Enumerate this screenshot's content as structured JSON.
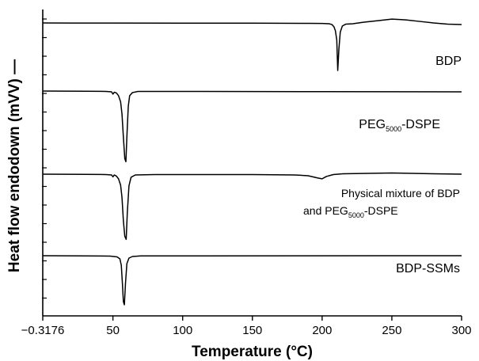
{
  "chart_data": {
    "type": "line",
    "title": "",
    "xlabel": "Temperature (°C)",
    "ylabel": "Heat flow endodown (mVV) —",
    "xlim": [
      -0.3176,
      300
    ],
    "x_ticks": [
      {
        "value": -0.3176,
        "label": "−0.3176"
      },
      {
        "value": 50,
        "label": "50"
      },
      {
        "value": 100,
        "label": "100"
      },
      {
        "value": 150,
        "label": "150"
      },
      {
        "value": 200,
        "label": "200"
      },
      {
        "value": 250,
        "label": "250"
      },
      {
        "value": 300,
        "label": "300"
      }
    ],
    "grid": false,
    "legend": "none",
    "line_color": "#000000",
    "series": [
      {
        "name": "BDP",
        "label_lines": [
          {
            "pre": "BDP",
            "sub": "",
            "post": ""
          }
        ],
        "points": [
          [
            0,
            0
          ],
          [
            20,
            0.1
          ],
          [
            50,
            0.15
          ],
          [
            100,
            0.2
          ],
          [
            150,
            0.3
          ],
          [
            190,
            0.5
          ],
          [
            200,
            0.6
          ],
          [
            205,
            1
          ],
          [
            207,
            2
          ],
          [
            208.5,
            5
          ],
          [
            209.5,
            10
          ],
          [
            210.5,
            22
          ],
          [
            211.2,
            62
          ],
          [
            212,
            35
          ],
          [
            213,
            12
          ],
          [
            214.5,
            4
          ],
          [
            217,
            1.5
          ],
          [
            222,
            1
          ],
          [
            230,
            -1
          ],
          [
            240,
            -3
          ],
          [
            250,
            -5
          ],
          [
            260,
            -4
          ],
          [
            270,
            -2
          ],
          [
            280,
            0
          ],
          [
            290,
            1.5
          ],
          [
            300,
            2
          ]
        ]
      },
      {
        "name": "PEG5000-DSPE",
        "label_lines": [
          {
            "pre": "PEG",
            "sub": "5000",
            "post": "-DSPE"
          }
        ],
        "points": [
          [
            0,
            0
          ],
          [
            30,
            0.2
          ],
          [
            45,
            0.5
          ],
          [
            49,
            1
          ],
          [
            50,
            4
          ],
          [
            51,
            1.5
          ],
          [
            52.5,
            2.5
          ],
          [
            54,
            6
          ],
          [
            55.5,
            14
          ],
          [
            56.5,
            30
          ],
          [
            57.5,
            60
          ],
          [
            58.5,
            88
          ],
          [
            59.3,
            92
          ],
          [
            60,
            60
          ],
          [
            61,
            20
          ],
          [
            62,
            6
          ],
          [
            64,
            2
          ],
          [
            68,
            0.5
          ],
          [
            100,
            0.5
          ],
          [
            200,
            0.8
          ],
          [
            300,
            1
          ]
        ]
      },
      {
        "name": "Physical mixture of BDP and PEG5000-DSPE",
        "label_lines": [
          {
            "pre": "Physical mixture of BDP",
            "sub": "",
            "post": ""
          },
          {
            "pre": "and PEG",
            "sub": "5000",
            "post": "-DSPE"
          }
        ],
        "points": [
          [
            0,
            0
          ],
          [
            30,
            0.2
          ],
          [
            45,
            0.5
          ],
          [
            49,
            1
          ],
          [
            50,
            3.5
          ],
          [
            51,
            1
          ],
          [
            52.5,
            2.5
          ],
          [
            54,
            6
          ],
          [
            55.5,
            14
          ],
          [
            56.5,
            30
          ],
          [
            57.5,
            60
          ],
          [
            58.5,
            80
          ],
          [
            59.5,
            84
          ],
          [
            60.3,
            50
          ],
          [
            61.5,
            15
          ],
          [
            63,
            4
          ],
          [
            66,
            1
          ],
          [
            80,
            0.5
          ],
          [
            150,
            0.5
          ],
          [
            180,
            1
          ],
          [
            190,
            2
          ],
          [
            197,
            5
          ],
          [
            200,
            6
          ],
          [
            203,
            3
          ],
          [
            208,
            0.5
          ],
          [
            215,
            -0.5
          ],
          [
            250,
            -1.5
          ],
          [
            280,
            -0.5
          ],
          [
            300,
            0
          ]
        ]
      },
      {
        "name": "BDP-SSMs",
        "label_lines": [
          {
            "pre": "BDP-SSMs",
            "sub": "",
            "post": ""
          }
        ],
        "points": [
          [
            0,
            0
          ],
          [
            30,
            0.2
          ],
          [
            48,
            0.5
          ],
          [
            53,
            1.5
          ],
          [
            55,
            4
          ],
          [
            56,
            12
          ],
          [
            56.8,
            35
          ],
          [
            57.5,
            58
          ],
          [
            58.2,
            62
          ],
          [
            59,
            35
          ],
          [
            60,
            10
          ],
          [
            61.5,
            3
          ],
          [
            64,
            1
          ],
          [
            70,
            0.3
          ],
          [
            300,
            0
          ]
        ]
      }
    ]
  }
}
